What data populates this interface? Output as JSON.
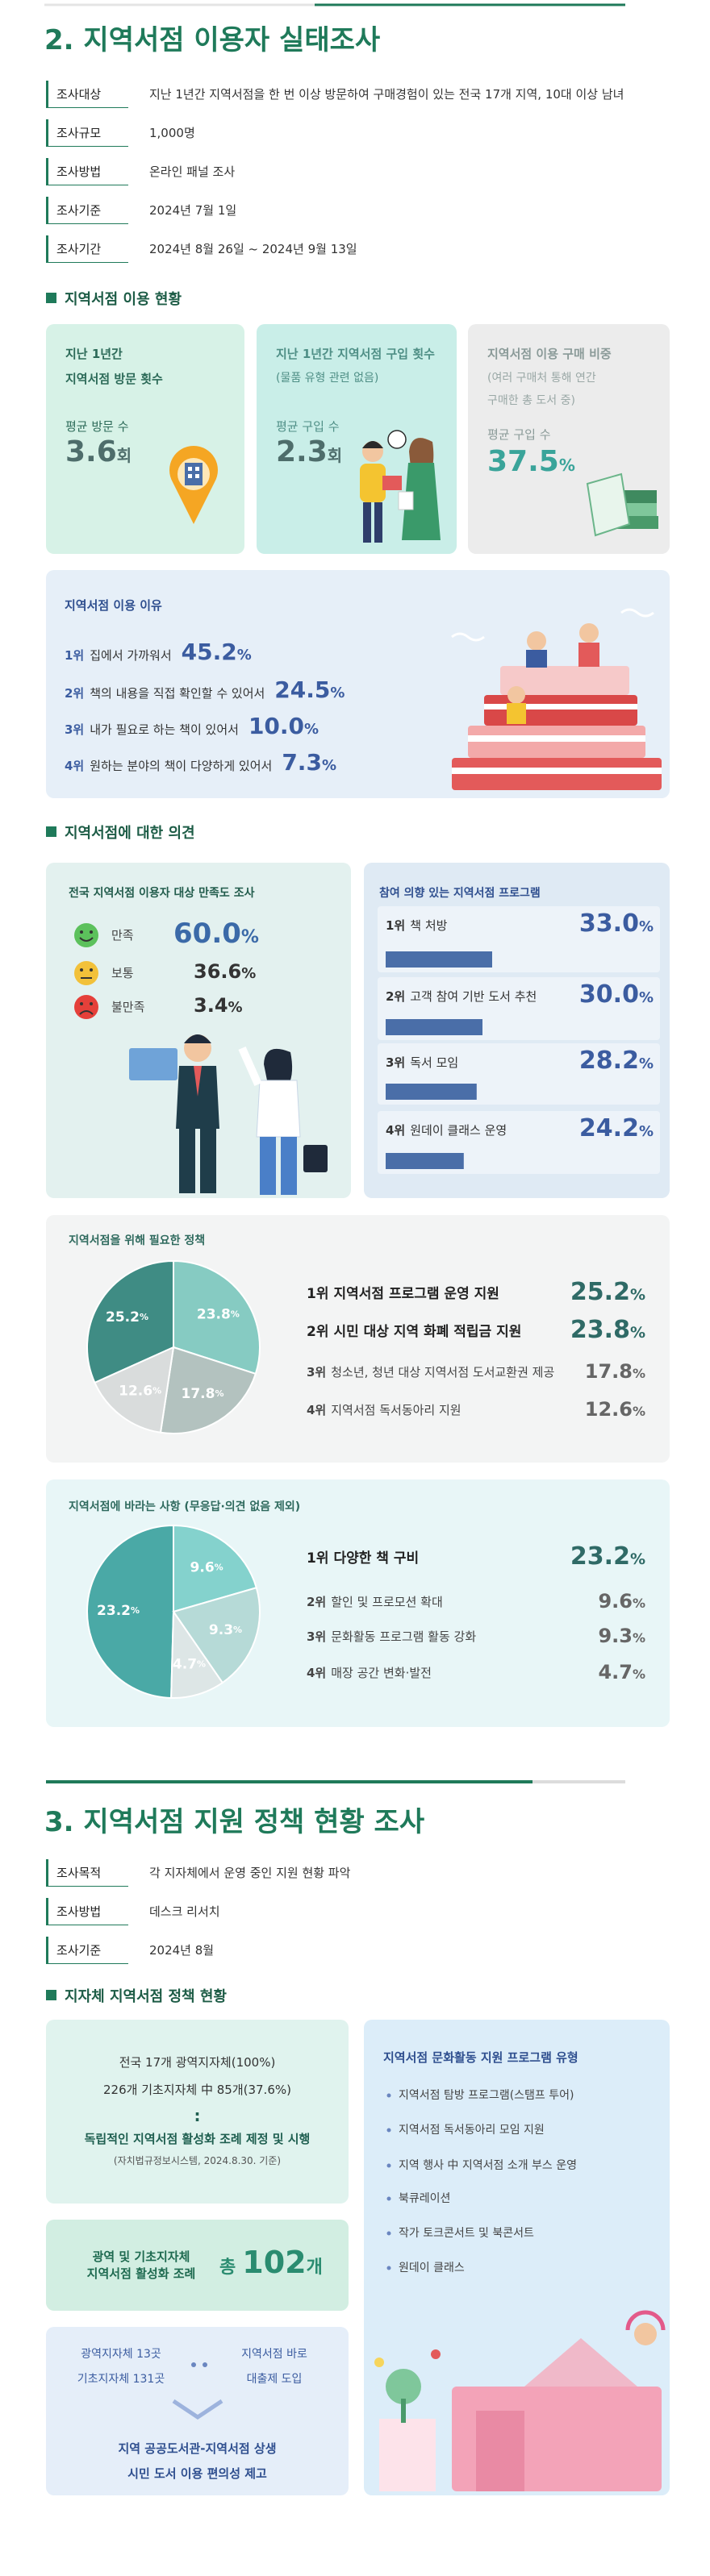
{
  "section2": {
    "title": "2. 지역서점 이용자 실태조사",
    "overview": [
      {
        "label": "조사대상",
        "text": "지난 1년간 지역서점을 한 번 이상 방문하여 구매경험이 있는 전국 17개 지역, 10대 이상 남녀"
      },
      {
        "label": "조사규모",
        "text": "1,000명"
      },
      {
        "label": "조사방법",
        "text": "온라인 패널 조사"
      },
      {
        "label": "조사기준",
        "text": "2024년 7월 1일"
      },
      {
        "label": "조사기간",
        "text": "2024년 8월 26일 ~ 2024년 9월 13일"
      }
    ],
    "usage": {
      "heading": "지역서점 이용 현황",
      "cards": [
        {
          "title": "지난 1년간\n지역서점 방문 횟수",
          "metric": "평균 방문 수",
          "value": "3.6",
          "unit": "회"
        },
        {
          "title": "지난 1년간 지역서점 구입 횟수",
          "note": "(물품 유형 관련 없음)",
          "metric": "평균 구입 수",
          "value": "2.3",
          "unit": "회"
        },
        {
          "title": "지역서점 이용 구매 비중",
          "note": "(여러 구매처 통해 연간\n구매한 총 도서 중)",
          "metric": "평균 구입 수",
          "value": "37.5",
          "unit": "%"
        }
      ],
      "reasons": {
        "title": "지역서점 이용 이유",
        "items": [
          {
            "rank": "1위",
            "text": "집에서 가까워서",
            "value": "45.2",
            "unit": "%"
          },
          {
            "rank": "2위",
            "text": "책의 내용을 직접 확인할 수 있어서",
            "value": "24.5",
            "unit": "%"
          },
          {
            "rank": "3위",
            "text": "내가 필요로 하는 책이 있어서",
            "value": "10.0",
            "unit": "%"
          },
          {
            "rank": "4위",
            "text": "원하는 분야의 책이 다양하게 있어서",
            "value": "7.3",
            "unit": "%"
          }
        ]
      }
    },
    "opinions": {
      "heading": "지역서점에 대한 의견",
      "satisfaction": {
        "title": "전국 지역서점 이용자 대상 만족도 조사",
        "items": [
          {
            "label": "만족",
            "value": "60.0",
            "unit": "%"
          },
          {
            "label": "보통",
            "value": "36.6",
            "unit": "%"
          },
          {
            "label": "불만족",
            "value": "3.4",
            "unit": "%"
          }
        ]
      },
      "programs": {
        "type": "bar",
        "title": "참여 의향 있는 지역서점 프로그램",
        "color": "#4a6ea8",
        "items": [
          {
            "rank": "1위",
            "text": "책 처방",
            "value": 33.0,
            "value_label": "33.0",
            "unit": "%"
          },
          {
            "rank": "2위",
            "text": "고객 참여 기반 도서 추천",
            "value": 30.0,
            "value_label": "30.0",
            "unit": "%"
          },
          {
            "rank": "3위",
            "text": "독서 모임",
            "value": 28.2,
            "value_label": "28.2",
            "unit": "%"
          },
          {
            "rank": "4위",
            "text": "원데이 클래스 운영",
            "value": 24.2,
            "value_label": "24.2",
            "unit": "%"
          }
        ]
      },
      "policies": {
        "type": "pie",
        "title": "지역서점을 위해 필요한 정책",
        "items": [
          {
            "rank": "1위",
            "text": "지역서점 프로그램 운영 지원",
            "value": 25.2,
            "value_label": "25.2",
            "unit": "%",
            "color": "#3f8c84"
          },
          {
            "rank": "2위",
            "text": "시민 대상 지역 화폐 적립금 지원",
            "value": 23.8,
            "value_label": "23.8",
            "unit": "%",
            "color": "#86cbc2"
          },
          {
            "rank": "3위",
            "text": "청소년, 청년 대상 지역서점 도서교환권 제공",
            "value": 17.8,
            "value_label": "17.8",
            "unit": "%",
            "color": "#b3c2bf"
          },
          {
            "rank": "4위",
            "text": "지역서점 독서동아리 지원",
            "value": 12.6,
            "value_label": "12.6",
            "unit": "%",
            "color": "#d9dcdc"
          }
        ]
      },
      "wishes": {
        "type": "pie",
        "title": "지역서점에 바라는 사항 (무응답·의견 없음 제외)",
        "items": [
          {
            "rank": "1위",
            "text": "다양한 책 구비",
            "value": 23.2,
            "value_label": "23.2",
            "unit": "%",
            "color": "#4aa9a6"
          },
          {
            "rank": "2위",
            "text": "할인 및 프로모션 확대",
            "value": 9.6,
            "value_label": "9.6",
            "unit": "%",
            "color": "#84d2cd"
          },
          {
            "rank": "3위",
            "text": "문화활동 프로그램 활동 강화",
            "value": 9.3,
            "value_label": "9.3",
            "unit": "%",
            "color": "#b6dad7"
          },
          {
            "rank": "4위",
            "text": "매장 공간 변화·발전",
            "value": 4.7,
            "value_label": "4.7",
            "unit": "%",
            "color": "#dde6e6"
          }
        ]
      }
    }
  },
  "section3": {
    "title": "3. 지역서점 지원 정책 현황 조사",
    "overview": [
      {
        "label": "조사목적",
        "text": "각 지자체에서 운영 중인 지원 현황 파악"
      },
      {
        "label": "조사방법",
        "text": "데스크 리서치"
      },
      {
        "label": "조사기준",
        "text": "2024년 8월"
      }
    ],
    "policy": {
      "heading": "지자체 지역서점 정책 현황",
      "ordinance": {
        "lines": [
          "전국 17개 광역지자체(100%)",
          "226개 기초지자체 中 85개(37.6%)"
        ],
        "separator": ":",
        "statement": "독립적인 지역서점 활성화 조례 제정 및 시행",
        "source": "(자치법규정보시스템, 2024.8.30. 기준)"
      },
      "total": {
        "label": "광역 및 기초지자체\n지역서점 활성화 조례",
        "prefix": "총",
        "value": "102",
        "unit": "개"
      },
      "loan": {
        "regions": "광역지자체 13곳\n기초지자체 131곳",
        "program": "지역서점 바로\n대출제 도입",
        "result": "지역 공공도서관-지역서점 상생\n시민 도서 이용 편의성 제고"
      },
      "programs": {
        "title": "지역서점 문화활동 지원 프로그램 유형",
        "items": [
          "지역서점 탐방 프로그램(스탬프 투어)",
          "지역서점 독서동아리 모임 지원",
          "지역 행사 中 지역서점 소개 부스 운영",
          "북큐레이션",
          "작가 토크콘서트 및 북콘서트",
          "원데이 클래스"
        ]
      }
    }
  }
}
